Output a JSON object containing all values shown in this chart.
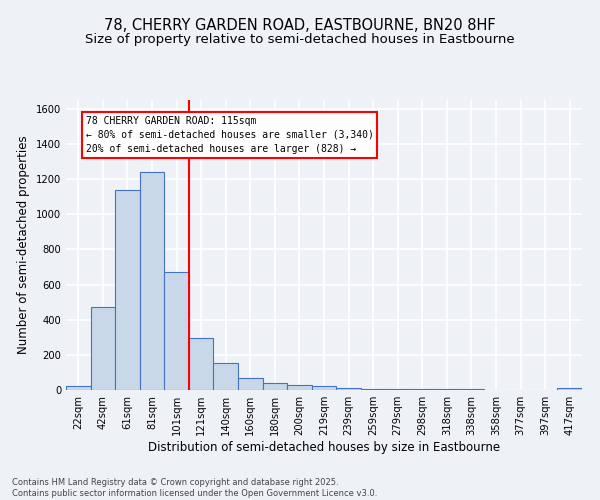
{
  "title": "78, CHERRY GARDEN ROAD, EASTBOURNE, BN20 8HF",
  "subtitle": "Size of property relative to semi-detached houses in Eastbourne",
  "xlabel": "Distribution of semi-detached houses by size in Eastbourne",
  "ylabel": "Number of semi-detached properties",
  "bin_labels": [
    "22sqm",
    "42sqm",
    "61sqm",
    "81sqm",
    "101sqm",
    "121sqm",
    "140sqm",
    "160sqm",
    "180sqm",
    "200sqm",
    "219sqm",
    "239sqm",
    "259sqm",
    "279sqm",
    "298sqm",
    "318sqm",
    "338sqm",
    "358sqm",
    "377sqm",
    "397sqm",
    "417sqm"
  ],
  "bin_values": [
    25,
    470,
    1140,
    1240,
    670,
    295,
    155,
    70,
    38,
    30,
    20,
    12,
    8,
    5,
    4,
    3,
    3,
    2,
    2,
    2,
    12
  ],
  "bar_color": "#c8d8e8",
  "bar_edge_color": "#4472c4",
  "red_line_bin_index": 4,
  "annotation_title": "78 CHERRY GARDEN ROAD: 115sqm",
  "annotation_line1": "← 80% of semi-detached houses are smaller (3,340)",
  "annotation_line2": "20% of semi-detached houses are larger (828) →",
  "footer_line1": "Contains HM Land Registry data © Crown copyright and database right 2025.",
  "footer_line2": "Contains public sector information licensed under the Open Government Licence v3.0.",
  "ylim": [
    0,
    1650
  ],
  "yticks": [
    0,
    200,
    400,
    600,
    800,
    1000,
    1200,
    1400,
    1600
  ],
  "background_color": "#eef2f7",
  "grid_color": "#ffffff",
  "title_fontsize": 10.5,
  "subtitle_fontsize": 9.5,
  "axis_label_fontsize": 8.5,
  "tick_fontsize": 7.2,
  "footer_fontsize": 6.0
}
